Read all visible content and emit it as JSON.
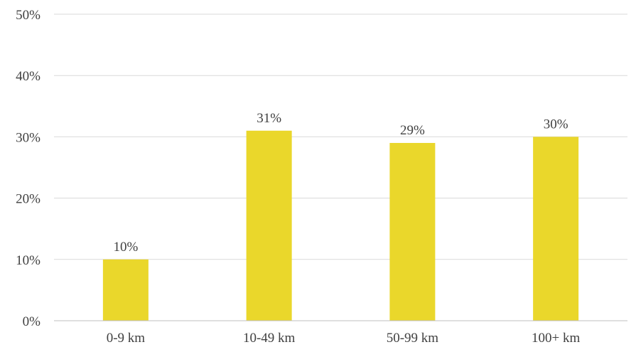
{
  "chart_data": {
    "type": "bar",
    "categories": [
      "0-9 km",
      "10-49 km",
      "50-99 km",
      "100+ km"
    ],
    "values": [
      10,
      31,
      29,
      30
    ],
    "value_labels": [
      "10%",
      "31%",
      "29%",
      "30%"
    ],
    "ylim": [
      0,
      50
    ],
    "y_ticks": [
      0,
      10,
      20,
      30,
      40,
      50
    ],
    "y_tick_labels": [
      "0%",
      "10%",
      "20%",
      "30%",
      "40%",
      "50%"
    ],
    "title": "",
    "xlabel": "",
    "ylabel": "",
    "grid": true,
    "legend": "none",
    "colors": {
      "bar": "#EAD72B",
      "grid": "#D9D9D9",
      "axis": "#BFBFBF",
      "text": "#404040"
    }
  }
}
